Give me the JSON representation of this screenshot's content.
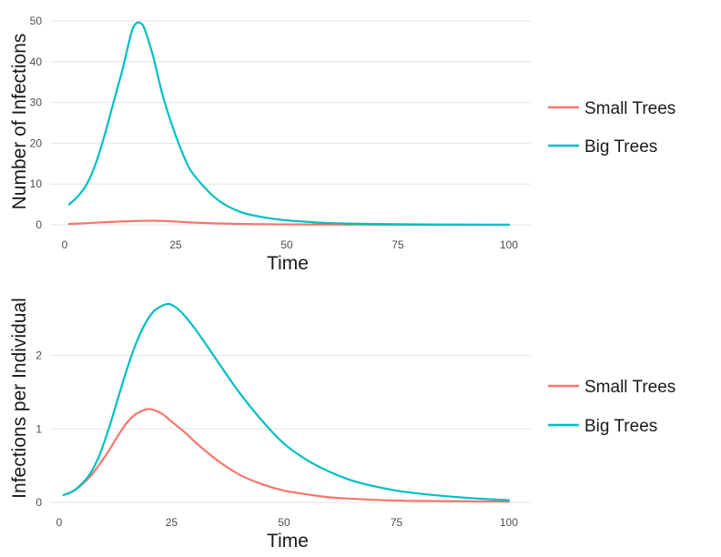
{
  "chart_data": [
    {
      "type": "line",
      "xlabel": "Time",
      "ylabel": "Number of Infections",
      "xlim": [
        0,
        100
      ],
      "ylim": [
        0,
        50
      ],
      "xticks": [
        0,
        25,
        50,
        75,
        100
      ],
      "yticks": [
        0,
        10,
        20,
        30,
        40,
        50
      ],
      "grid": true,
      "legend_position": "right",
      "series": [
        {
          "name": "Small Trees",
          "color": "#f8766d",
          "points": [
            [
              1,
              0.2
            ],
            [
              5,
              0.4
            ],
            [
              10,
              0.7
            ],
            [
              15,
              0.9
            ],
            [
              20,
              1.0
            ],
            [
              25,
              0.8
            ],
            [
              30,
              0.5
            ],
            [
              40,
              0.2
            ],
            [
              50,
              0.1
            ],
            [
              60,
              0.05
            ],
            [
              80,
              0.0
            ],
            [
              100,
              0.0
            ]
          ]
        },
        {
          "name": "Big Trees",
          "color": "#00bfc4",
          "points": [
            [
              1,
              5
            ],
            [
              3,
              7
            ],
            [
              5,
              10
            ],
            [
              7,
              15
            ],
            [
              9,
              22
            ],
            [
              11,
              30
            ],
            [
              13,
              38
            ],
            [
              15,
              47
            ],
            [
              16,
              49.3
            ],
            [
              17,
              49.5
            ],
            [
              18,
              48
            ],
            [
              20,
              41
            ],
            [
              22,
              32
            ],
            [
              24,
              25
            ],
            [
              26,
              19
            ],
            [
              28,
              14
            ],
            [
              30,
              11
            ],
            [
              33,
              7.5
            ],
            [
              36,
              5
            ],
            [
              40,
              3
            ],
            [
              45,
              1.8
            ],
            [
              50,
              1.1
            ],
            [
              55,
              0.7
            ],
            [
              60,
              0.4
            ],
            [
              70,
              0.2
            ],
            [
              80,
              0.1
            ],
            [
              90,
              0.05
            ],
            [
              100,
              0.02
            ]
          ]
        }
      ]
    },
    {
      "type": "line",
      "xlabel": "Time",
      "ylabel": "Infections per Individual",
      "xlim": [
        0,
        100
      ],
      "ylim": [
        0,
        2.8
      ],
      "xticks": [
        0,
        25,
        50,
        75,
        100
      ],
      "yticks": [
        0,
        1,
        2
      ],
      "grid": true,
      "legend_position": "right",
      "series": [
        {
          "name": "Small Trees",
          "color": "#f8766d",
          "points": [
            [
              1,
              0.1
            ],
            [
              3,
              0.15
            ],
            [
              5,
              0.24
            ],
            [
              7,
              0.36
            ],
            [
              9,
              0.52
            ],
            [
              11,
              0.7
            ],
            [
              13,
              0.9
            ],
            [
              15,
              1.08
            ],
            [
              17,
              1.2
            ],
            [
              19,
              1.26
            ],
            [
              20,
              1.27
            ],
            [
              21,
              1.26
            ],
            [
              23,
              1.2
            ],
            [
              25,
              1.1
            ],
            [
              28,
              0.95
            ],
            [
              31,
              0.78
            ],
            [
              35,
              0.58
            ],
            [
              40,
              0.38
            ],
            [
              45,
              0.25
            ],
            [
              50,
              0.16
            ],
            [
              55,
              0.11
            ],
            [
              60,
              0.07
            ],
            [
              70,
              0.035
            ],
            [
              80,
              0.02
            ],
            [
              90,
              0.015
            ],
            [
              100,
              0.01
            ]
          ]
        },
        {
          "name": "Big Trees",
          "color": "#00bfc4",
          "points": [
            [
              1,
              0.1
            ],
            [
              3,
              0.15
            ],
            [
              5,
              0.25
            ],
            [
              7,
              0.4
            ],
            [
              9,
              0.65
            ],
            [
              11,
              1.0
            ],
            [
              13,
              1.4
            ],
            [
              15,
              1.8
            ],
            [
              17,
              2.15
            ],
            [
              19,
              2.42
            ],
            [
              21,
              2.6
            ],
            [
              23,
              2.68
            ],
            [
              24,
              2.7
            ],
            [
              25,
              2.69
            ],
            [
              27,
              2.6
            ],
            [
              30,
              2.38
            ],
            [
              33,
              2.12
            ],
            [
              36,
              1.85
            ],
            [
              40,
              1.5
            ],
            [
              45,
              1.12
            ],
            [
              50,
              0.8
            ],
            [
              55,
              0.58
            ],
            [
              60,
              0.42
            ],
            [
              65,
              0.3
            ],
            [
              70,
              0.22
            ],
            [
              75,
              0.16
            ],
            [
              80,
              0.12
            ],
            [
              85,
              0.09
            ],
            [
              90,
              0.065
            ],
            [
              95,
              0.045
            ],
            [
              100,
              0.03
            ]
          ]
        }
      ]
    }
  ]
}
